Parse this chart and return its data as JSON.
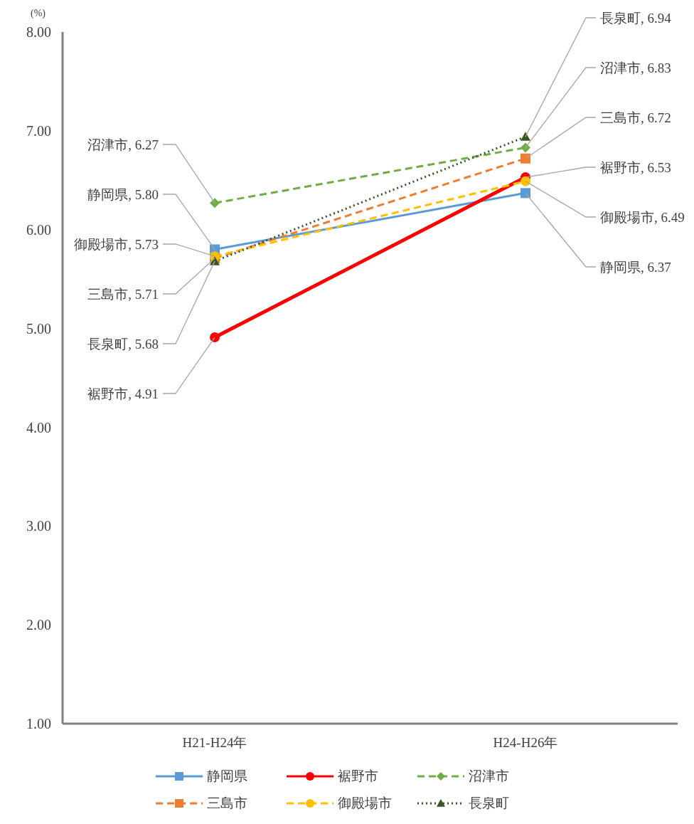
{
  "chart_data": {
    "type": "line",
    "ylabel": "(%)",
    "categories": [
      "H21-H24年",
      "H24-H26年"
    ],
    "ylim": [
      1,
      8
    ],
    "yticks": [
      {
        "value": 1,
        "label": "1.00"
      },
      {
        "value": 2,
        "label": "2.00"
      },
      {
        "value": 3,
        "label": "3.00"
      },
      {
        "value": 4,
        "label": "4.00"
      },
      {
        "value": 5,
        "label": "5.00"
      },
      {
        "value": 6,
        "label": "6.00"
      },
      {
        "value": 7,
        "label": "7.00"
      },
      {
        "value": 8,
        "label": "8.00"
      }
    ],
    "grid": false,
    "legend": "bottom",
    "series": [
      {
        "name": "静岡県",
        "color": "#5b9bd5",
        "values": [
          5.8,
          6.37
        ],
        "marker": "square",
        "line_style": "solid",
        "value_labels": [
          "静岡県, 5.80",
          "静岡県, 6.37"
        ]
      },
      {
        "name": "裾野市",
        "color": "#ff0000",
        "values": [
          4.91,
          6.53
        ],
        "marker": "circle",
        "line_style": "solid",
        "value_labels": [
          "裾野市, 4.91",
          "裾野市, 6.53"
        ]
      },
      {
        "name": "沼津市",
        "color": "#70ad47",
        "values": [
          6.27,
          6.83
        ],
        "marker": "diamond",
        "line_style": "dashed",
        "value_labels": [
          "沼津市, 6.27",
          "沼津市, 6.83"
        ]
      },
      {
        "name": "三島市",
        "color": "#ed7d31",
        "values": [
          5.71,
          6.72
        ],
        "marker": "square",
        "line_style": "dashed",
        "value_labels": [
          "三島市, 5.71",
          "三島市, 6.72"
        ]
      },
      {
        "name": "御殿場市",
        "color": "#ffc000",
        "values": [
          5.73,
          6.49
        ],
        "marker": "circle",
        "line_style": "dashed",
        "value_labels": [
          "御殿場市, 5.73",
          "御殿場市, 6.49"
        ]
      },
      {
        "name": "長泉町",
        "color": "#375623",
        "values": [
          5.68,
          6.94
        ],
        "marker": "triangle",
        "line_style": "dotted",
        "value_labels": [
          "長泉町, 5.68",
          "長泉町, 6.94"
        ]
      }
    ]
  }
}
